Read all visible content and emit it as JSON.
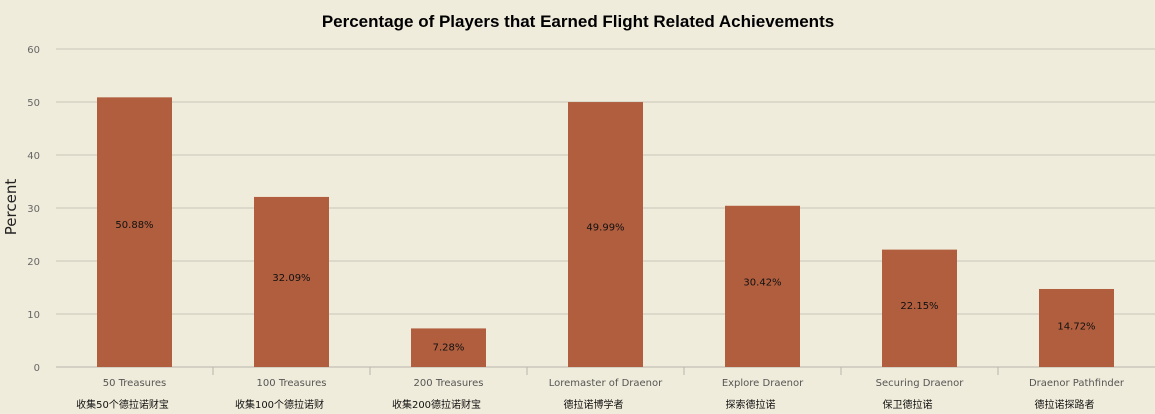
{
  "chart_data": {
    "type": "bar",
    "title": "Percentage of Players that Earned Flight Related Achievements",
    "ylabel": "Percent",
    "xlabel": "",
    "ylim": [
      0,
      60
    ],
    "yticks": [
      0,
      10,
      20,
      30,
      40,
      50,
      60
    ],
    "grid": true,
    "legend": "none",
    "bar_color": "#b05e3e",
    "background_color": "#f0ecdb",
    "categories": [
      "50 Treasures",
      "100 Treasures",
      "200 Treasures",
      "Loremaster of Draenor",
      "Explore Draenor",
      "Securing Draenor",
      "Draenor Pathfinder"
    ],
    "category_sublabels": [
      "收集50个德拉诺财宝",
      "收集100个德拉诺财",
      "收集200德拉诺财宝",
      "德拉诺博学者",
      "探索德拉诺",
      "保卫德拉诺",
      "德拉诺探路者"
    ],
    "values": [
      50.88,
      32.09,
      7.28,
      49.99,
      30.42,
      22.15,
      14.72
    ],
    "data_labels": [
      "50.88%",
      "32.09%",
      "7.28%",
      "49.99%",
      "30.42%",
      "22.15%",
      "14.72%"
    ]
  }
}
